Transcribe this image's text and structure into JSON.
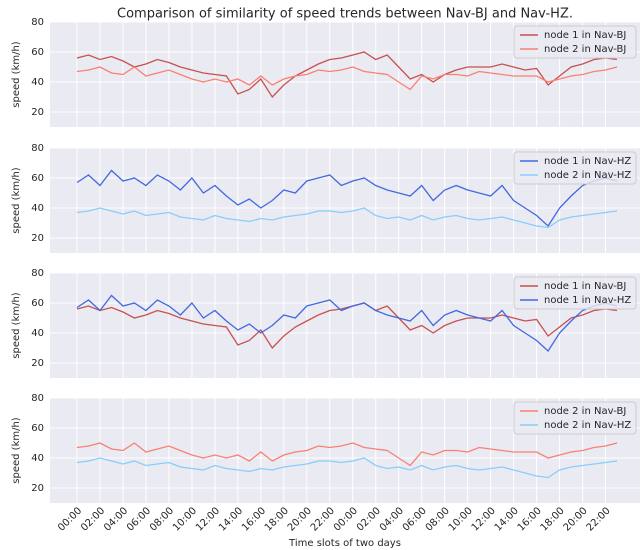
{
  "title": "Comparison of similarity of speed trends between Nav-BJ and Nav-HZ.",
  "xlabel": "Time slots of two days",
  "xlim": [
    -2.35,
    49
  ],
  "xticks": [
    {
      "value": 0,
      "label": "00:00"
    },
    {
      "value": 2,
      "label": "02:00"
    },
    {
      "value": 4,
      "label": "04:00"
    },
    {
      "value": 6,
      "label": "06:00"
    },
    {
      "value": 8,
      "label": "08:00"
    },
    {
      "value": 10,
      "label": "10:00"
    },
    {
      "value": 12,
      "label": "12:00"
    },
    {
      "value": 14,
      "label": "14:00"
    },
    {
      "value": 16,
      "label": "16:00"
    },
    {
      "value": 18,
      "label": "18:00"
    },
    {
      "value": 20,
      "label": "20:00"
    },
    {
      "value": 22,
      "label": "22:00"
    },
    {
      "value": 24,
      "label": "00:00"
    },
    {
      "value": 26,
      "label": "02:00"
    },
    {
      "value": 28,
      "label": "04:00"
    },
    {
      "value": 30,
      "label": "06:00"
    },
    {
      "value": 32,
      "label": "08:00"
    },
    {
      "value": 34,
      "label": "10:00"
    },
    {
      "value": 36,
      "label": "12:00"
    },
    {
      "value": 38,
      "label": "14:00"
    },
    {
      "value": 40,
      "label": "16:00"
    },
    {
      "value": 42,
      "label": "18:00"
    },
    {
      "value": 44,
      "label": "20:00"
    },
    {
      "value": 46,
      "label": "22:00"
    }
  ],
  "x": [
    0,
    1,
    2,
    3,
    4,
    5,
    6,
    7,
    8,
    9,
    10,
    11,
    12,
    13,
    14,
    15,
    16,
    17,
    18,
    19,
    20,
    21,
    22,
    23,
    24,
    25,
    26,
    27,
    28,
    29,
    30,
    31,
    32,
    33,
    34,
    35,
    36,
    37,
    38,
    39,
    40,
    41,
    42,
    43,
    44,
    45,
    46,
    47
  ],
  "chart_data": [
    {
      "type": "line",
      "ylabel": "speed (km/h)",
      "ylim": [
        10,
        80
      ],
      "yticks": [
        20,
        40,
        60,
        80
      ],
      "grid": true,
      "legend": "upper right",
      "series": [
        {
          "name": "node 1 in Nav-BJ",
          "color": "#c8504f",
          "values": [
            56,
            58,
            55,
            57,
            54,
            50,
            52,
            55,
            53,
            50,
            48,
            46,
            45,
            44,
            32,
            35,
            42,
            30,
            38,
            44,
            48,
            52,
            55,
            56,
            58,
            60,
            55,
            58,
            50,
            42,
            45,
            40,
            45,
            48,
            50,
            50,
            50,
            52,
            50,
            48,
            49,
            38,
            44,
            50,
            52,
            55,
            56,
            55
          ]
        },
        {
          "name": "node 2 in Nav-BJ",
          "color": "#fa8072",
          "values": [
            47,
            48,
            50,
            46,
            45,
            50,
            44,
            46,
            48,
            45,
            42,
            40,
            42,
            40,
            42,
            38,
            44,
            38,
            42,
            44,
            45,
            48,
            47,
            48,
            50,
            47,
            46,
            45,
            40,
            35,
            44,
            42,
            45,
            45,
            44,
            47,
            46,
            45,
            44,
            44,
            44,
            40,
            42,
            44,
            45,
            47,
            48,
            50
          ]
        }
      ]
    },
    {
      "type": "line",
      "ylabel": "speed (km/h)",
      "ylim": [
        10,
        80
      ],
      "yticks": [
        20,
        40,
        60,
        80
      ],
      "grid": true,
      "legend": "upper right",
      "series": [
        {
          "name": "node 1 in Nav-HZ",
          "color": "#4169e1",
          "values": [
            57,
            62,
            55,
            65,
            58,
            60,
            55,
            62,
            58,
            52,
            60,
            50,
            55,
            48,
            42,
            46,
            40,
            45,
            52,
            50,
            58,
            60,
            62,
            55,
            58,
            60,
            55,
            52,
            50,
            48,
            55,
            45,
            52,
            55,
            52,
            50,
            48,
            55,
            45,
            40,
            35,
            28,
            40,
            48,
            55,
            58,
            60,
            58
          ]
        },
        {
          "name": "node 2 in Nav-HZ",
          "color": "#87cefa",
          "values": [
            37,
            38,
            40,
            38,
            36,
            38,
            35,
            36,
            37,
            34,
            33,
            32,
            35,
            33,
            32,
            31,
            33,
            32,
            34,
            35,
            36,
            38,
            38,
            37,
            38,
            40,
            35,
            33,
            34,
            32,
            35,
            32,
            34,
            35,
            33,
            32,
            33,
            34,
            32,
            30,
            28,
            27,
            32,
            34,
            35,
            36,
            37,
            38
          ]
        }
      ]
    },
    {
      "type": "line",
      "ylabel": "speed (km/h)",
      "ylim": [
        10,
        80
      ],
      "yticks": [
        20,
        40,
        60,
        80
      ],
      "grid": true,
      "legend": "upper right",
      "series": [
        {
          "name": "node 1 in Nav-BJ",
          "color": "#c8504f",
          "values": [
            56,
            58,
            55,
            57,
            54,
            50,
            52,
            55,
            53,
            50,
            48,
            46,
            45,
            44,
            32,
            35,
            42,
            30,
            38,
            44,
            48,
            52,
            55,
            56,
            58,
            60,
            55,
            58,
            50,
            42,
            45,
            40,
            45,
            48,
            50,
            50,
            50,
            52,
            50,
            48,
            49,
            38,
            44,
            50,
            52,
            55,
            56,
            55
          ]
        },
        {
          "name": "node 1 in Nav-HZ",
          "color": "#4169e1",
          "values": [
            57,
            62,
            55,
            65,
            58,
            60,
            55,
            62,
            58,
            52,
            60,
            50,
            55,
            48,
            42,
            46,
            40,
            45,
            52,
            50,
            58,
            60,
            62,
            55,
            58,
            60,
            55,
            52,
            50,
            48,
            55,
            45,
            52,
            55,
            52,
            50,
            48,
            55,
            45,
            40,
            35,
            28,
            40,
            48,
            55,
            58,
            60,
            58
          ]
        }
      ]
    },
    {
      "type": "line",
      "ylabel": "speed (km/h)",
      "ylim": [
        10,
        80
      ],
      "yticks": [
        20,
        40,
        60,
        80
      ],
      "grid": true,
      "legend": "upper right",
      "series": [
        {
          "name": "node 2 in Nav-BJ",
          "color": "#fa8072",
          "values": [
            47,
            48,
            50,
            46,
            45,
            50,
            44,
            46,
            48,
            45,
            42,
            40,
            42,
            40,
            42,
            38,
            44,
            38,
            42,
            44,
            45,
            48,
            47,
            48,
            50,
            47,
            46,
            45,
            40,
            35,
            44,
            42,
            45,
            45,
            44,
            47,
            46,
            45,
            44,
            44,
            44,
            40,
            42,
            44,
            45,
            47,
            48,
            50
          ]
        },
        {
          "name": "node 2 in Nav-HZ",
          "color": "#87cefa",
          "values": [
            37,
            38,
            40,
            38,
            36,
            38,
            35,
            36,
            37,
            34,
            33,
            32,
            35,
            33,
            32,
            31,
            33,
            32,
            34,
            35,
            36,
            38,
            38,
            37,
            38,
            40,
            35,
            33,
            34,
            32,
            35,
            32,
            34,
            35,
            33,
            32,
            33,
            34,
            32,
            30,
            28,
            27,
            32,
            34,
            35,
            36,
            37,
            38
          ]
        }
      ]
    }
  ]
}
